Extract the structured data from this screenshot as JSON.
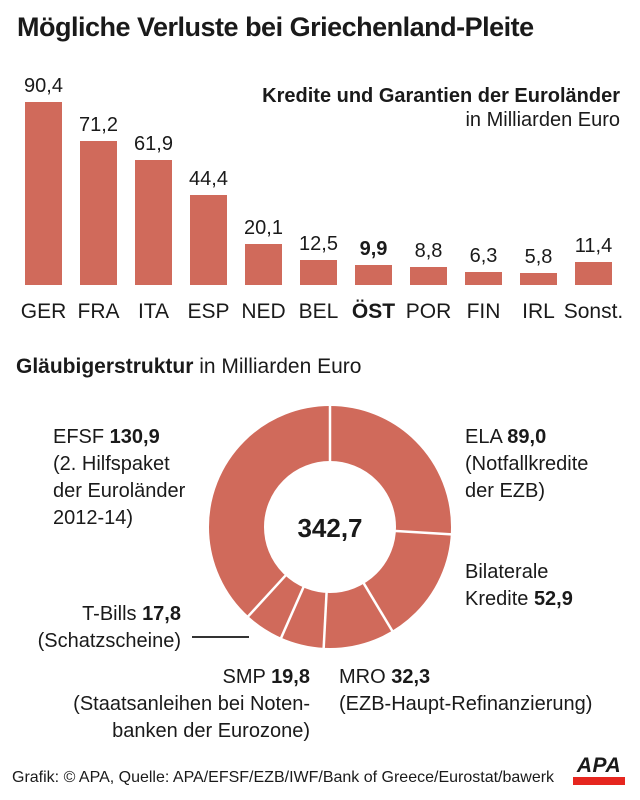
{
  "title": "Mögliche Verluste bei Griechenland-Pleite",
  "colors": {
    "accent": "#d06a5b",
    "apa_red": "#e6261f",
    "text": "#1a1a1a"
  },
  "chart_data": [
    {
      "type": "bar",
      "title": "Kredite und Garantien der Euroländer",
      "subtitle": "in Milliarden Euro",
      "categories": [
        "GER",
        "FRA",
        "ITA",
        "ESP",
        "NED",
        "BEL",
        "ÖST",
        "POR",
        "FIN",
        "IRL",
        "Sonst."
      ],
      "values": [
        90.4,
        71.2,
        61.9,
        44.4,
        20.1,
        12.5,
        9.9,
        8.8,
        6.3,
        5.8,
        11.4
      ],
      "value_labels": [
        "90,4",
        "71,2",
        "61,9",
        "44,4",
        "20,1",
        "12,5",
        "9,9",
        "8,8",
        "6,3",
        "5,8",
        "11,4"
      ],
      "emphasized_category": "ÖST",
      "unit": "Milliarden Euro",
      "ylim": [
        0,
        95
      ],
      "grid": false,
      "bar_color": "#d06a5b"
    },
    {
      "type": "pie",
      "variant": "donut",
      "title": "Gläubigerstruktur",
      "subtitle": "in Milliarden Euro",
      "total": 342.7,
      "center_label": "342,7",
      "start_angle_deg": 0,
      "direction": "clockwise",
      "segment_color": "#d06a5b",
      "segments": [
        {
          "name": "ELA",
          "value": 89.0,
          "label": "ELA 89,0",
          "desc": "(Notfallkredite der EZB)"
        },
        {
          "name": "Bilaterale Kredite",
          "value": 52.9,
          "label": "Bilaterale Kredite 52,9",
          "desc": ""
        },
        {
          "name": "MRO",
          "value": 32.3,
          "label": "MRO 32,3",
          "desc": "(EZB-Haupt-Refinanzierung)"
        },
        {
          "name": "SMP",
          "value": 19.8,
          "label": "SMP 19,8",
          "desc": "(Staatsanleihen bei Notenbanken der Eurozone)"
        },
        {
          "name": "T-Bills",
          "value": 17.8,
          "label": "T-Bills 17,8",
          "desc": "(Schatzscheine)"
        },
        {
          "name": "EFSF",
          "value": 130.9,
          "label": "EFSF 130,9",
          "desc": "(2. Hilfspaket der Euroländer 2012-14)"
        }
      ]
    }
  ],
  "donut_labels": [
    {
      "id": "efsf",
      "lines": [
        [
          {
            "t": "EFSF "
          },
          {
            "t": "130,9",
            "b": true
          }
        ],
        [
          {
            "t": "(2. Hilfspaket"
          }
        ],
        [
          {
            "t": "der Euroländer"
          }
        ],
        [
          {
            "t": "2012-14)"
          }
        ]
      ]
    },
    {
      "id": "ela",
      "lines": [
        [
          {
            "t": "ELA "
          },
          {
            "t": "89,0",
            "b": true
          }
        ],
        [
          {
            "t": "(Notfallkredite"
          }
        ],
        [
          {
            "t": "der EZB)"
          }
        ]
      ]
    },
    {
      "id": "bilateral",
      "lines": [
        [
          {
            "t": "Bilaterale"
          }
        ],
        [
          {
            "t": "Kredite "
          },
          {
            "t": "52,9",
            "b": true
          }
        ]
      ]
    },
    {
      "id": "tbills",
      "lines": [
        [
          {
            "t": "T-Bills "
          },
          {
            "t": "17,8",
            "b": true
          }
        ],
        [
          {
            "t": "(Schatzscheine)"
          }
        ]
      ]
    },
    {
      "id": "smp",
      "lines": [
        [
          {
            "t": "SMP "
          },
          {
            "t": "19,8",
            "b": true
          }
        ],
        [
          {
            "t": "(Staatsanleihen bei Noten-"
          }
        ],
        [
          {
            "t": "banken der Eurozone)"
          }
        ]
      ]
    },
    {
      "id": "mro",
      "lines": [
        [
          {
            "t": "MRO "
          },
          {
            "t": "32,3",
            "b": true
          }
        ],
        [
          {
            "t": "(EZB-Haupt-Refinanzierung)"
          }
        ]
      ]
    }
  ],
  "footer": {
    "credit": "Grafik: © APA, Quelle: APA/EFSF/EZB/IWF/Bank of Greece/Eurostat/bawerk",
    "logo_text": "APA"
  }
}
